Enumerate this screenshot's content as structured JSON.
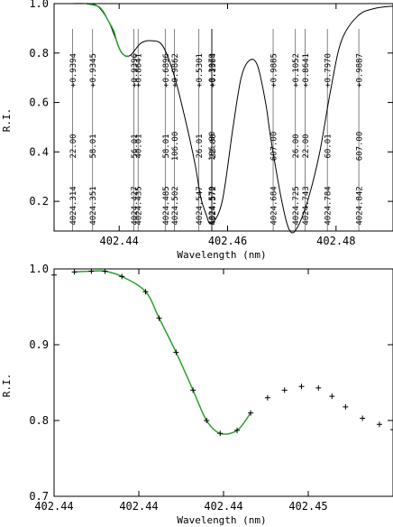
{
  "chart_data": [
    {
      "type": "line",
      "xlabel": "Wavelength (nm)",
      "ylabel": "R.I.",
      "xlim": [
        402.428,
        402.4905
      ],
      "ylim": [
        0.08,
        1.0
      ],
      "x_ticks": [
        402.44,
        402.46,
        402.48
      ],
      "x_tick_labels": [
        "402.44",
        "402.46",
        "402.48"
      ],
      "y_ticks": [
        0.2,
        0.4,
        0.6,
        0.8,
        1.0
      ],
      "y_tick_labels": [
        "0.2",
        "0.4",
        "0.6",
        "0.8",
        "1.0"
      ],
      "colors": {
        "spectrum": "#000000",
        "fit": "#2ca02c"
      },
      "series": [
        {
          "x": [
            402.428,
            402.431,
            402.434,
            402.436,
            402.438,
            402.4395,
            402.4405,
            402.442,
            402.444,
            402.446,
            402.448,
            402.45,
            402.452,
            402.454,
            402.455,
            402.456,
            402.457,
            402.459,
            402.461,
            402.4625,
            402.464,
            402.4655,
            402.467,
            402.468,
            402.47,
            402.4715,
            402.473,
            402.475,
            402.477,
            402.479,
            402.481,
            402.484,
            402.487,
            402.4905
          ],
          "y": [
            1.0,
            1.0,
            1.0,
            0.99,
            0.93,
            0.85,
            0.8,
            0.79,
            0.84,
            0.85,
            0.83,
            0.72,
            0.55,
            0.35,
            0.22,
            0.15,
            0.11,
            0.2,
            0.5,
            0.7,
            0.77,
            0.75,
            0.6,
            0.45,
            0.2,
            0.08,
            0.1,
            0.22,
            0.4,
            0.65,
            0.85,
            0.95,
            0.98,
            0.99
          ]
        },
        {
          "x": [
            402.434,
            402.436,
            402.437,
            402.438,
            402.439,
            402.4395,
            402.44,
            402.4405,
            402.441,
            402.4415
          ],
          "y": [
            1.0,
            0.99,
            0.97,
            0.93,
            0.89,
            0.85,
            0.82,
            0.8,
            0.79,
            0.785
          ]
        }
      ],
      "line_list": [
        {
          "x": 402.4314,
          "wavelength": "4024.314",
          "intensity": "22.00",
          "value": "+0.9394"
        },
        {
          "x": 402.4351,
          "wavelength": "4024.351",
          "intensity": "58.01",
          "value": "+0.9345"
        },
        {
          "x": 402.4427,
          "wavelength": "4024.427",
          "intensity": "56.01",
          "value": "+0.9396"
        },
        {
          "x": 402.4435,
          "wavelength": "4024.435",
          "intensity": "40.01",
          "value": "+0.8641"
        },
        {
          "x": 402.4485,
          "wavelength": "4024.485",
          "intensity": "58.01",
          "value": "+0.6896"
        },
        {
          "x": 402.4502,
          "wavelength": "4024.502",
          "intensity": "106.00",
          "value": "+0.9862"
        },
        {
          "x": 402.4547,
          "wavelength": "4024.547",
          "intensity": "26.01",
          "value": "+0.5301"
        },
        {
          "x": 402.457,
          "wavelength": "4024.570",
          "intensity": "106.00",
          "value": "+0.3079"
        },
        {
          "x": 402.4572,
          "wavelength": "4024.572",
          "intensity": "22.00",
          "value": "+0.1364"
        },
        {
          "x": 402.4684,
          "wavelength": "4024.684",
          "intensity": "607.00",
          "value": "+0.9885"
        },
        {
          "x": 402.4725,
          "wavelength": "4024.725",
          "intensity": "26.00",
          "value": "+0.1052"
        },
        {
          "x": 402.4743,
          "wavelength": "4024.743",
          "intensity": "22.00",
          "value": "+0.8641"
        },
        {
          "x": 402.4784,
          "wavelength": "4024.784",
          "intensity": "60.01",
          "value": "+0.7970"
        },
        {
          "x": 402.4842,
          "wavelength": "4024.842",
          "intensity": "607.00",
          "value": "+0.9887"
        }
      ]
    },
    {
      "type": "scatter",
      "xlabel": "Wavelength (nm)",
      "ylabel": "R.I.",
      "xlim": [
        0.0,
        1.0
      ],
      "ylim": [
        0.7,
        1.0
      ],
      "x_ticks": [
        0.0,
        0.25,
        0.5,
        0.75
      ],
      "x_tick_labels": [
        "402.44",
        "402.44",
        "402.44",
        "402.45"
      ],
      "y_ticks": [
        0.7,
        0.8,
        0.9,
        1.0
      ],
      "y_tick_labels": [
        "0.7",
        "0.8",
        "0.9",
        "1.0"
      ],
      "colors": {
        "data": "#000000",
        "fit": "#2ca02c"
      },
      "series": [
        {
          "x": [
            0.0,
            0.06,
            0.11,
            0.15,
            0.2,
            0.27,
            0.31,
            0.36,
            0.41,
            0.45,
            0.49,
            0.54,
            0.58,
            0.63,
            0.68,
            0.73,
            0.78,
            0.82,
            0.86,
            0.91,
            0.96,
            1.0
          ],
          "y": [
            0.992,
            0.996,
            0.997,
            0.997,
            0.99,
            0.97,
            0.935,
            0.89,
            0.84,
            0.8,
            0.783,
            0.787,
            0.81,
            0.83,
            0.84,
            0.845,
            0.843,
            0.832,
            0.818,
            0.803,
            0.795,
            0.788
          ]
        },
        {
          "x": [
            0.06,
            0.11,
            0.15,
            0.2,
            0.27,
            0.31,
            0.36,
            0.41,
            0.45,
            0.49,
            0.54,
            0.58
          ],
          "y": [
            0.996,
            0.997,
            0.997,
            0.99,
            0.97,
            0.935,
            0.89,
            0.84,
            0.8,
            0.783,
            0.787,
            0.81
          ]
        }
      ]
    }
  ]
}
